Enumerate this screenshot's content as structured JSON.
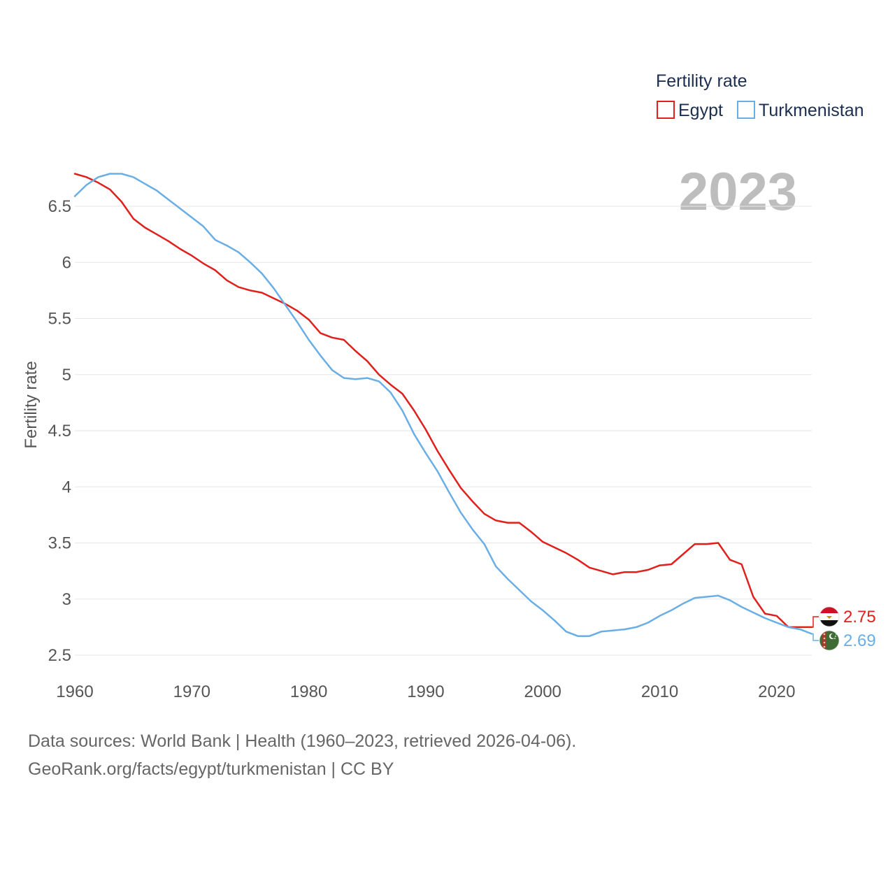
{
  "chart_data": {
    "type": "line",
    "year_label": "2023",
    "legend": {
      "title": "Fertility rate"
    },
    "ylabel": "Fertility rate",
    "xlabel": "",
    "xlim": [
      1960,
      2023
    ],
    "ylim": [
      2.5,
      6.8
    ],
    "x_ticks": [
      "1960",
      "1970",
      "1980",
      "1990",
      "2000",
      "2010",
      "2020"
    ],
    "y_ticks": [
      "2.5",
      "3",
      "3.5",
      "4",
      "4.5",
      "5",
      "5.5",
      "6",
      "6.5"
    ],
    "x": [
      1960,
      1961,
      1962,
      1963,
      1964,
      1965,
      1966,
      1967,
      1968,
      1969,
      1970,
      1971,
      1972,
      1973,
      1974,
      1975,
      1976,
      1977,
      1978,
      1979,
      1980,
      1981,
      1982,
      1983,
      1984,
      1985,
      1986,
      1987,
      1988,
      1989,
      1990,
      1991,
      1992,
      1993,
      1994,
      1995,
      1996,
      1997,
      1998,
      1999,
      2000,
      2001,
      2002,
      2003,
      2004,
      2005,
      2006,
      2007,
      2008,
      2009,
      2010,
      2011,
      2012,
      2013,
      2014,
      2015,
      2016,
      2017,
      2018,
      2019,
      2020,
      2021,
      2022,
      2023
    ],
    "series": [
      {
        "name": "Egypt",
        "color": "#e0201c",
        "end_label": "2.75",
        "values": [
          6.79,
          6.76,
          6.71,
          6.65,
          6.54,
          6.39,
          6.31,
          6.25,
          6.19,
          6.12,
          6.06,
          5.99,
          5.93,
          5.84,
          5.78,
          5.75,
          5.73,
          5.68,
          5.63,
          5.57,
          5.49,
          5.37,
          5.33,
          5.31,
          5.21,
          5.12,
          5.0,
          4.91,
          4.83,
          4.68,
          4.51,
          4.32,
          4.15,
          3.99,
          3.87,
          3.76,
          3.7,
          3.68,
          3.68,
          3.6,
          3.51,
          3.46,
          3.41,
          3.35,
          3.28,
          3.25,
          3.22,
          3.24,
          3.24,
          3.26,
          3.3,
          3.31,
          3.4,
          3.49,
          3.49,
          3.5,
          3.35,
          3.31,
          3.02,
          2.87,
          2.85,
          2.75,
          2.75,
          2.75
        ]
      },
      {
        "name": "Turkmenistan",
        "color": "#6aaee6",
        "end_label": "2.69",
        "values": [
          6.59,
          6.69,
          6.76,
          6.79,
          6.79,
          6.76,
          6.7,
          6.64,
          6.56,
          6.48,
          6.4,
          6.32,
          6.2,
          6.15,
          6.09,
          6.0,
          5.9,
          5.77,
          5.62,
          5.47,
          5.31,
          5.17,
          5.04,
          4.97,
          4.96,
          4.97,
          4.94,
          4.84,
          4.68,
          4.47,
          4.3,
          4.14,
          3.95,
          3.77,
          3.62,
          3.49,
          3.29,
          3.18,
          3.08,
          2.98,
          2.9,
          2.81,
          2.71,
          2.67,
          2.67,
          2.71,
          2.72,
          2.73,
          2.75,
          2.79,
          2.85,
          2.9,
          2.96,
          3.01,
          3.02,
          3.03,
          2.99,
          2.93,
          2.88,
          2.83,
          2.79,
          2.75,
          2.73,
          2.69
        ]
      }
    ]
  },
  "footer": {
    "line1": "Data sources: World Bank | Health (1960–2023, retrieved 2026-04-06).",
    "line2": "GeoRank.org/facts/egypt/turkmenistan | CC BY"
  }
}
